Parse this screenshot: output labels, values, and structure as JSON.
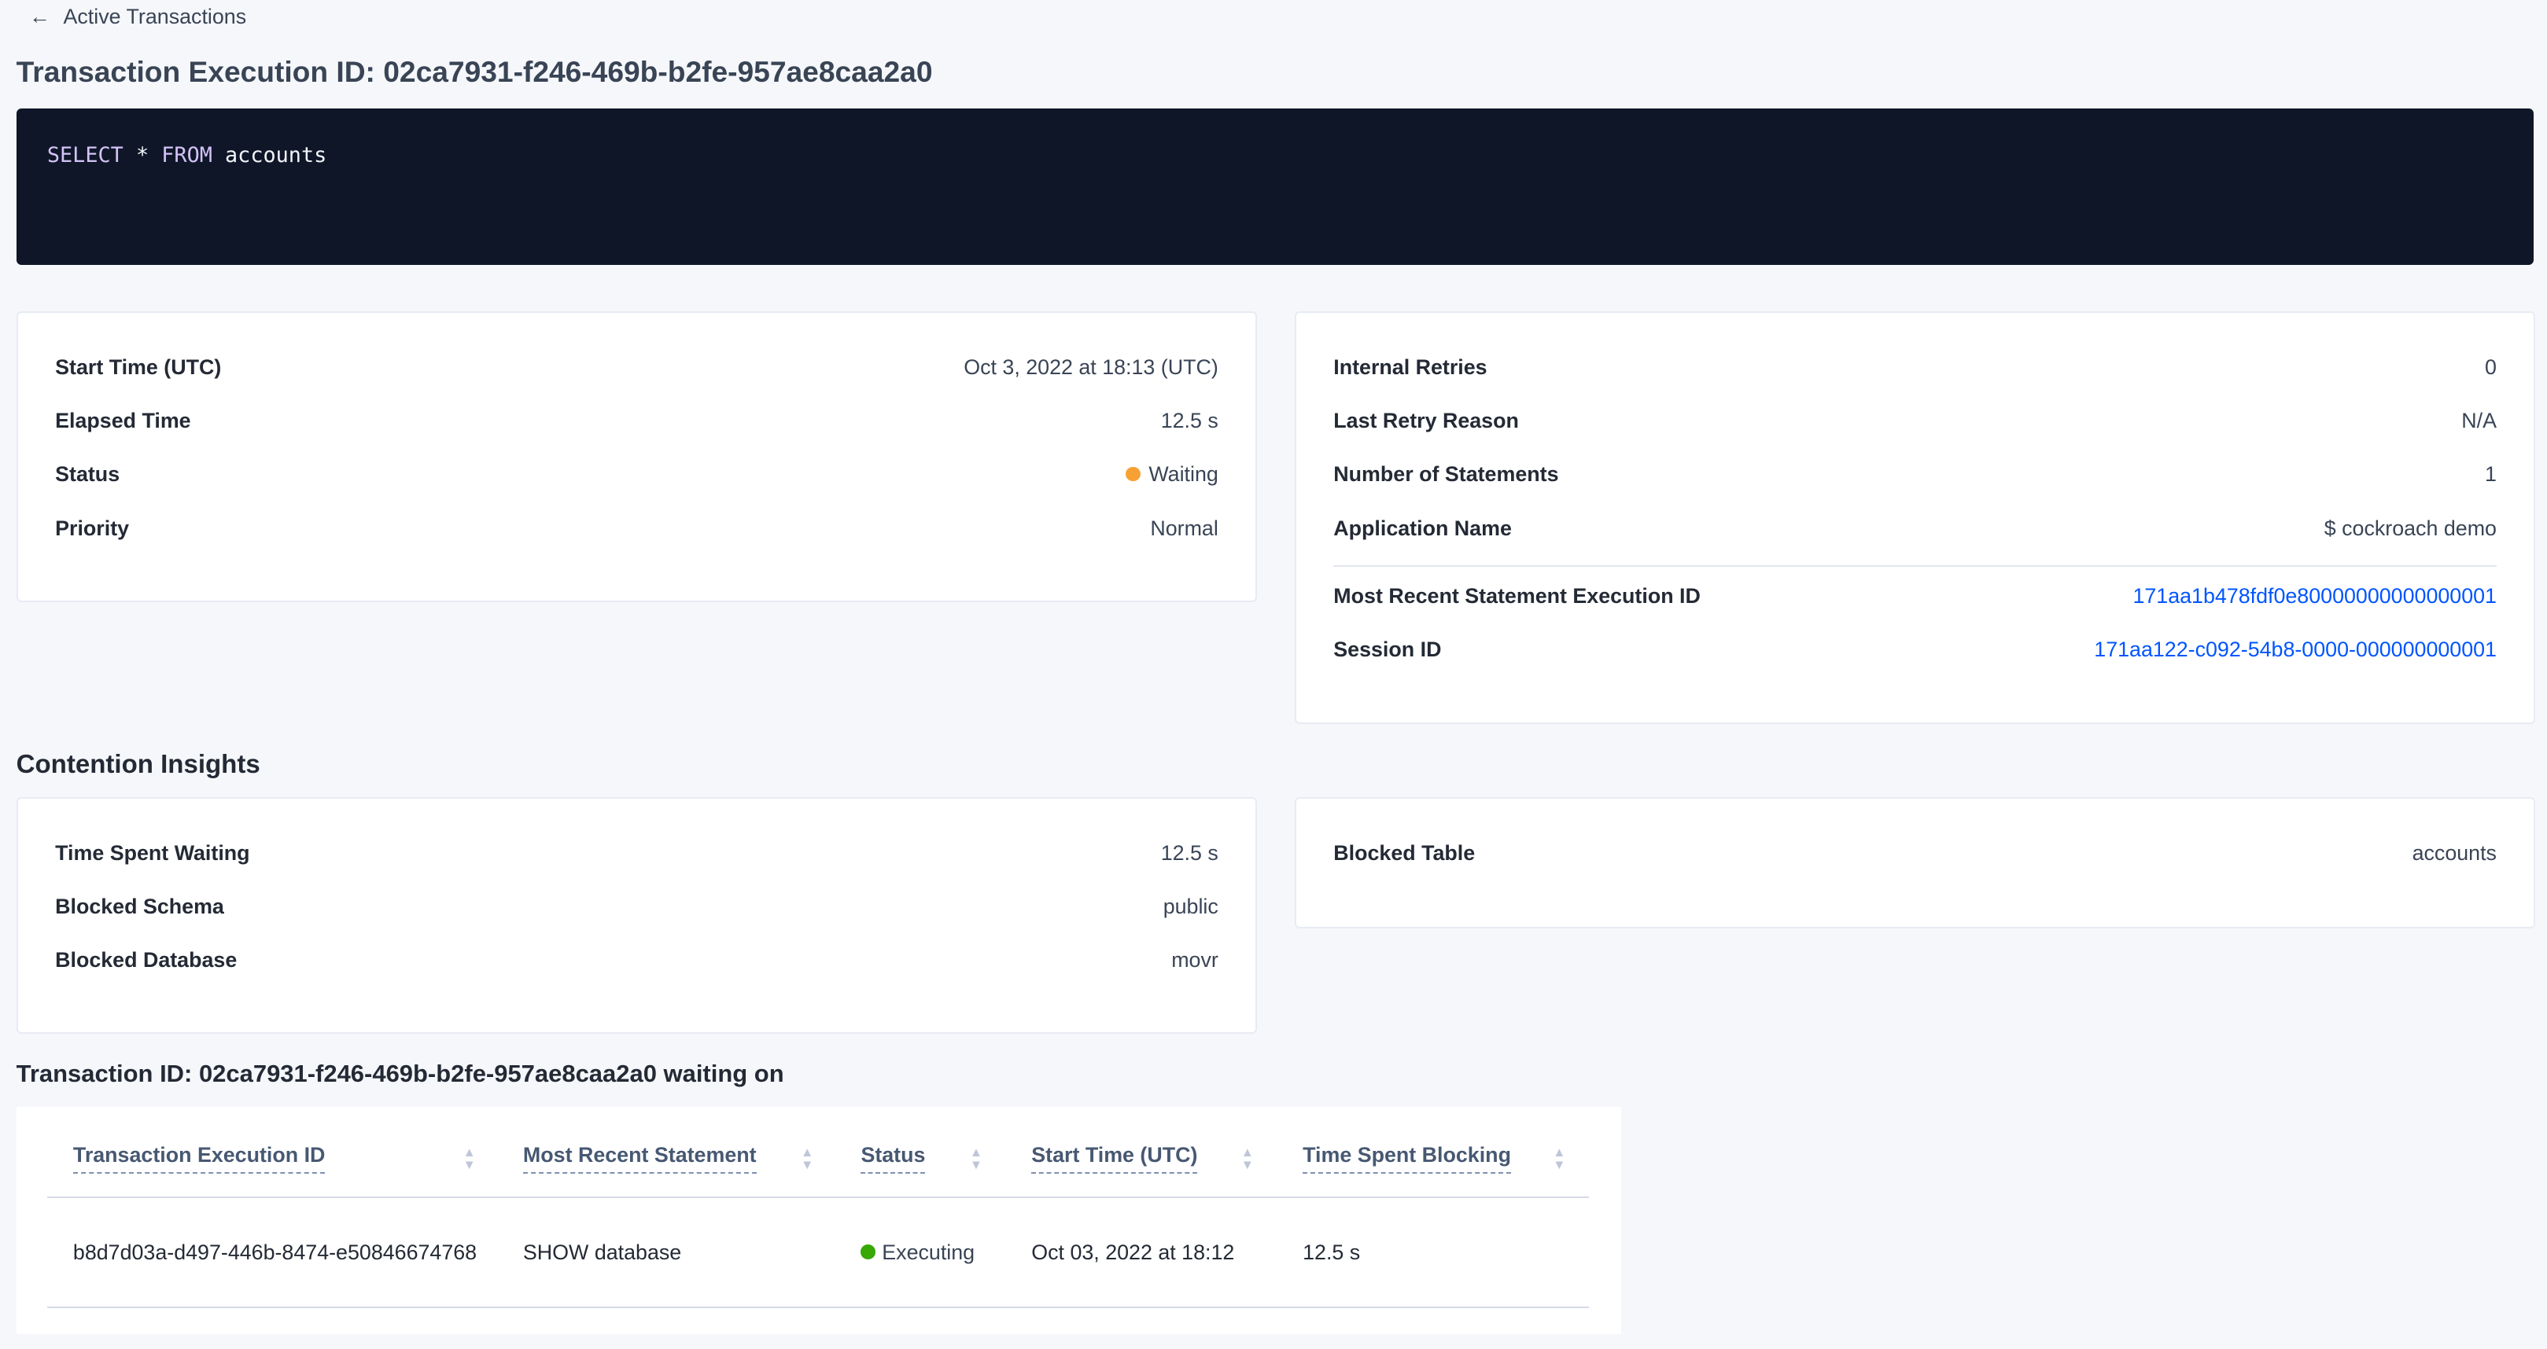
{
  "back_link": {
    "label": "Active Transactions",
    "icon": "arrow-left-icon"
  },
  "page_title": "Transaction Execution ID: 02ca7931-f246-469b-b2fe-957ae8caa2a0",
  "sql": {
    "keyword1": "SELECT",
    "star": "*",
    "keyword2": "FROM",
    "table": "accounts"
  },
  "summary_left": [
    {
      "label": "Start Time (UTC)",
      "value": "Oct 3, 2022 at 18:13 (UTC)"
    },
    {
      "label": "Elapsed Time",
      "value": "12.5 s"
    },
    {
      "label": "Status",
      "value": "Waiting",
      "color": "#f7a135"
    },
    {
      "label": "Priority",
      "value": "Normal"
    }
  ],
  "summary_right": [
    {
      "label": "Internal Retries",
      "value": "0"
    },
    {
      "label": "Last Retry Reason",
      "value": "N/A"
    },
    {
      "label": "Number of Statements",
      "value": "1"
    },
    {
      "label": "Application Name",
      "value": "$ cockroach demo"
    },
    {
      "label": "Most Recent Statement Execution ID",
      "value": "171aa1b478fdf0e80000000000000001"
    },
    {
      "label": "Session ID",
      "value": "171aa122-c092-54b8-0000-000000000001"
    }
  ],
  "contention": {
    "heading": "Contention Insights",
    "left": [
      {
        "label": "Time Spent Waiting",
        "value": "12.5 s"
      },
      {
        "label": "Blocked Schema",
        "value": "public"
      },
      {
        "label": "Blocked Database",
        "value": "movr"
      }
    ],
    "right": [
      {
        "label": "Blocked Table",
        "value": "accounts"
      }
    ]
  },
  "waiting_on": {
    "heading": "Transaction ID: 02ca7931-f246-469b-b2fe-957ae8caa2a0 waiting on",
    "columns": [
      "Transaction Execution ID",
      "Most Recent Statement",
      "Status",
      "Start Time (UTC)",
      "Time Spent Blocking"
    ],
    "rows": [
      {
        "id": "b8d7d03a-d497-446b-8474-e50846674768",
        "statement": "SHOW database",
        "status": "Executing",
        "status_color": "#37a806",
        "start": "Oct 03, 2022 at 18:12",
        "blocking": "12.5 s"
      }
    ]
  }
}
